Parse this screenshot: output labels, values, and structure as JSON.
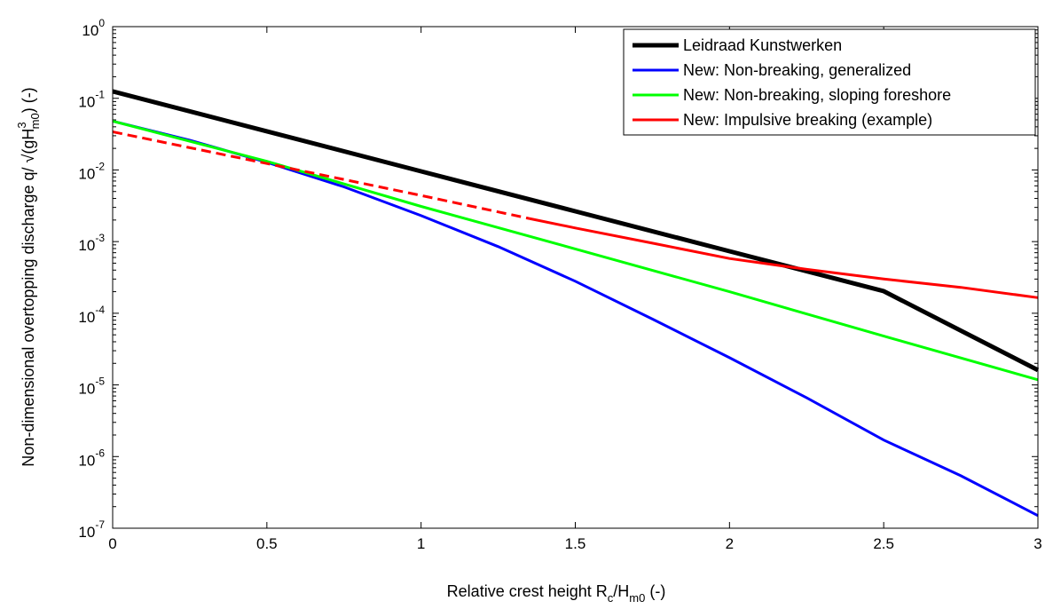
{
  "chart_data": {
    "type": "line",
    "xlabel": {
      "main": "Relative crest height R",
      "sub1": "c",
      "mid": "/H",
      "sub2": "m0",
      "tail": " (-)"
    },
    "ylabel": {
      "main": "Non-dimensional overtopping discharge q/ √(gH",
      "sup": "3",
      "sub": "m0",
      "tail": ") (-)"
    },
    "xlim": [
      0,
      3
    ],
    "ylim": [
      1e-07,
      1
    ],
    "yscale": "log",
    "x_ticks": [
      "0",
      "0.5",
      "1",
      "1.5",
      "2",
      "2.5",
      "3"
    ],
    "x_tick_values": [
      0,
      0.5,
      1,
      1.5,
      2,
      2.5,
      3
    ],
    "y_tick_base": "10",
    "y_tick_exponents": [
      "-7",
      "-6",
      "-5",
      "-4",
      "-3",
      "-2",
      "-1",
      "0"
    ],
    "legend_position": "top-right",
    "series": [
      {
        "name": "Leidraad Kunstwerken",
        "color": "#000000",
        "style": "solid-thick",
        "x": [
          0,
          0.5,
          1,
          1.5,
          2,
          2.5,
          3
        ],
        "y": [
          0.125,
          0.0346,
          0.00957,
          0.00265,
          0.000733,
          0.000203,
          1.61e-05
        ]
      },
      {
        "name": "New: Non-breaking, generalized",
        "color": "#0000ff",
        "style": "solid",
        "x": [
          0,
          0.25,
          0.5,
          0.75,
          1,
          1.25,
          1.5,
          1.75,
          2,
          2.25,
          2.5,
          2.75,
          3
        ],
        "y": [
          0.048,
          0.026,
          0.0128,
          0.0058,
          0.0023,
          0.00085,
          0.00028,
          8.3e-05,
          2.4e-05,
          6.6e-06,
          1.7e-06,
          5.4e-07,
          1.5e-07
        ]
      },
      {
        "name": "New: Non-breaking, sloping foreshore",
        "color": "#00ff00",
        "style": "solid",
        "x": [
          0,
          0.5,
          1,
          1.5,
          2,
          2.5,
          3
        ],
        "y": [
          0.048,
          0.0132,
          0.0031,
          0.00079,
          0.0002,
          4.8e-05,
          1.18e-05
        ]
      },
      {
        "name": "New: Impulsive breaking (example)",
        "color": "#ff0000",
        "style": "dashed-solid",
        "dash_until_x": 1.35,
        "x": [
          0,
          0.5,
          1,
          1.35,
          1.5,
          1.75,
          2,
          2.25,
          2.5,
          2.75,
          3
        ],
        "y": [
          0.034,
          0.0123,
          0.0044,
          0.0021,
          0.00155,
          0.00095,
          0.00058,
          0.00041,
          0.0003,
          0.00023,
          0.000165
        ]
      }
    ]
  }
}
